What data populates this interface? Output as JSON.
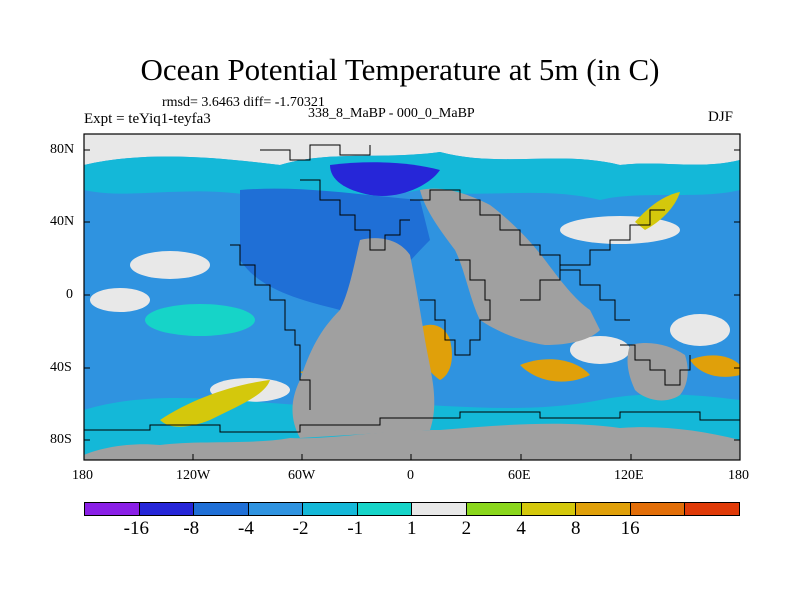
{
  "title": "Ocean Potential Temperature at 5m (in C)",
  "stats": "rmsd= 3.6463 diff= -1.70321",
  "expt": "Expt = teYiq1-teyfa3",
  "period": "338_8_MaBP - 000_0_MaBP",
  "season": "DJF",
  "axes": {
    "x_ticks": [
      "180",
      "120W",
      "60W",
      "0",
      "60E",
      "120E",
      "180"
    ],
    "y_ticks": [
      "80N",
      "40N",
      "0",
      "40S",
      "80S"
    ]
  },
  "colorbar": {
    "colors": [
      "#8a1fe6",
      "#2626d8",
      "#1f6fd6",
      "#2f93e0",
      "#14b8d8",
      "#16d4c8",
      "#e8e8e8",
      "#8ad61c",
      "#d4c80c",
      "#e0a00a",
      "#e26e08",
      "#e03a08"
    ],
    "labels": [
      "-16",
      "-8",
      "-4",
      "-2",
      "-1",
      "1",
      "2",
      "4",
      "8",
      "16"
    ]
  },
  "land_color": "#a0a0a0"
}
